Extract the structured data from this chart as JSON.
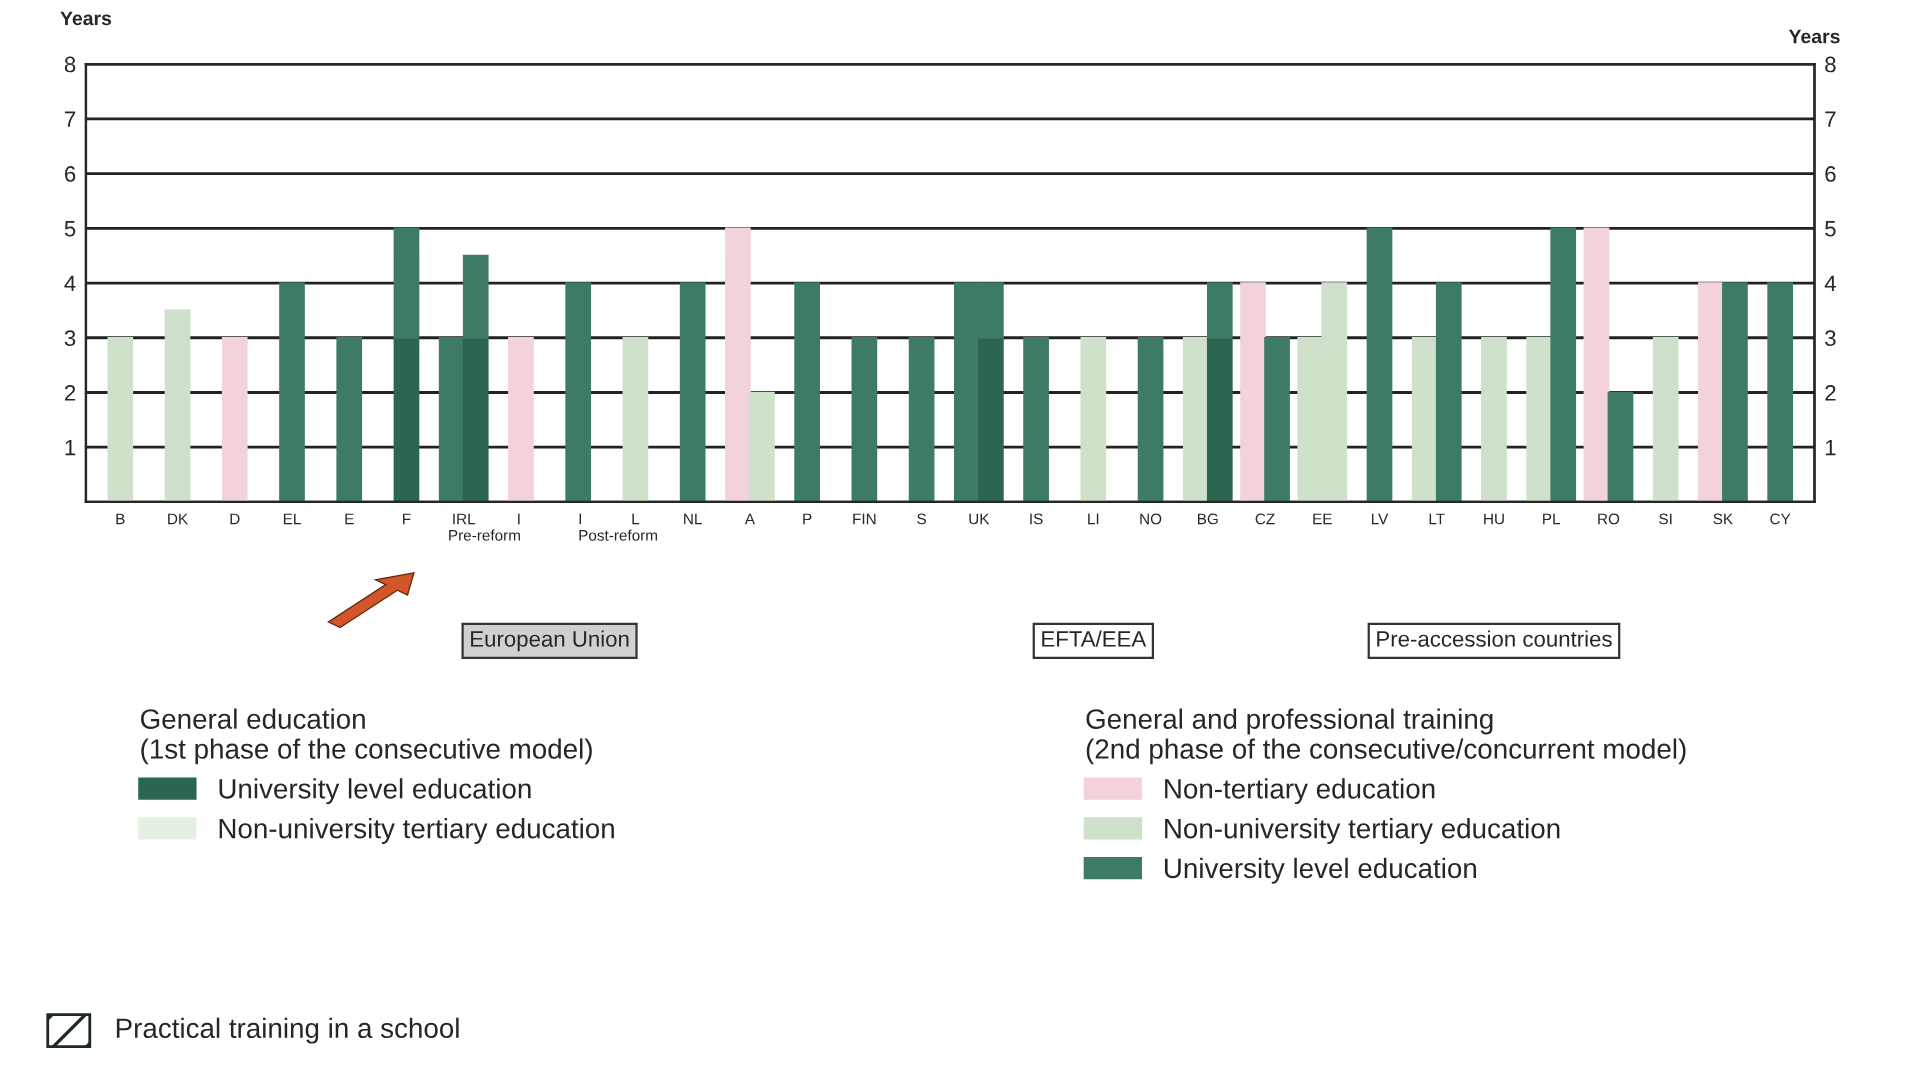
{
  "chart_data": {
    "type": "bar",
    "ylabel": "Years",
    "y2label": "Years",
    "categories": [
      "B",
      "DK",
      "D",
      "EL",
      "E",
      "F",
      "IRL",
      "I\nPre-reform",
      "I\nPost-reform",
      "L",
      "NL",
      "A",
      "P",
      "FIN",
      "S",
      "UK",
      "IS",
      "LI",
      "NO",
      "BG",
      "CZ",
      "EE",
      "LV",
      "LT",
      "HU",
      "PL",
      "RO",
      "SI",
      "SK",
      "CY"
    ],
    "series": [
      {
        "name": "Non-tertiary education",
        "color": "#f2d3da",
        "values": [
          null,
          null,
          3,
          null,
          null,
          null,
          null,
          3,
          null,
          null,
          null,
          5,
          null,
          null,
          null,
          null,
          null,
          null,
          null,
          null,
          4,
          null,
          null,
          null,
          null,
          null,
          5,
          null,
          4,
          null
        ]
      },
      {
        "name": "Non-university tertiary education",
        "color": "#cfe0cb",
        "values": [
          3,
          3.5,
          null,
          null,
          null,
          null,
          null,
          null,
          null,
          3,
          null,
          2,
          null,
          null,
          null,
          null,
          null,
          3,
          null,
          3,
          null,
          3,
          null,
          3,
          3,
          3,
          null,
          3,
          null,
          null
        ]
      },
      {
        "name": "University level education",
        "color": "#3e7b64",
        "values": [
          null,
          null,
          null,
          4,
          3,
          null,
          3,
          null,
          4,
          null,
          4,
          null,
          4,
          3,
          3,
          4,
          3,
          null,
          3,
          null,
          3,
          null,
          5,
          4,
          null,
          5,
          2,
          null,
          4,
          4
        ]
      },
      {
        "name": "University level education",
        "color": "#2c6650",
        "values": [
          null,
          null,
          null,
          null,
          null,
          3,
          3,
          null,
          null,
          null,
          null,
          null,
          null,
          null,
          null,
          3,
          null,
          null,
          null,
          3,
          null,
          null,
          null,
          null,
          null,
          null,
          null,
          null,
          null,
          null
        ]
      },
      {
        "name": "Non-university tertiary education",
        "color": "#e6efe3",
        "values": [
          null,
          null,
          null,
          null,
          null,
          null,
          null,
          null,
          null,
          null,
          null,
          null,
          null,
          null,
          null,
          null,
          null,
          null,
          null,
          null,
          null,
          null,
          null,
          null,
          null,
          null,
          null,
          null,
          null,
          null
        ]
      },
      {
        "color": "#3e7b64",
        "base": [
          null,
          null,
          null,
          null,
          null,
          3,
          3,
          null,
          null,
          null,
          null,
          null,
          null,
          null,
          null,
          3,
          null,
          null,
          null,
          3,
          null,
          null,
          null,
          null,
          null,
          null,
          null,
          null,
          null,
          null
        ],
        "values": [
          null,
          null,
          null,
          null,
          null,
          2,
          1.5,
          null,
          null,
          null,
          null,
          null,
          null,
          null,
          null,
          1,
          null,
          null,
          null,
          1,
          null,
          null,
          null,
          null,
          null,
          null,
          null,
          null,
          null,
          null
        ]
      },
      {
        "color": "#cfe0cb",
        "values": [
          null,
          null,
          null,
          null,
          null,
          null,
          null,
          null,
          null,
          null,
          null,
          null,
          null,
          null,
          null,
          null,
          null,
          null,
          null,
          null,
          null,
          4,
          null,
          null,
          null,
          null,
          null,
          null,
          null,
          null
        ]
      }
    ],
    "ylim": [
      0,
      8
    ],
    "yticks": [
      1,
      2,
      3,
      4,
      5,
      6,
      7,
      8
    ],
    "y2lim": [
      0,
      8
    ],
    "y2ticks": [
      1,
      2,
      3,
      4,
      5,
      6,
      7,
      8
    ],
    "grid": "y",
    "legend": "bottom",
    "annotations": [
      "General education\n(1st phase of the consecutive model)",
      "General and professional training\n(2nd phase of the consecutive/concurrent model)",
      "Practical training in a school",
      "European Union",
      "EFTA/EEA",
      "Pre-accession countries"
    ]
  }
}
